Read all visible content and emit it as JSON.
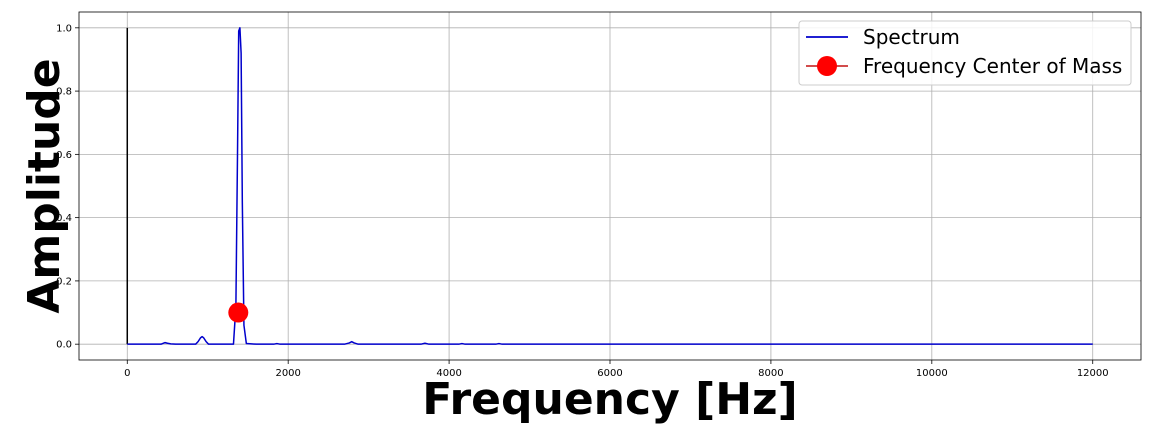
{
  "chart_data": {
    "type": "line",
    "title": "",
    "xlabel": "Frequency [Hz]",
    "ylabel": "Amplitude",
    "xlim": [
      -600,
      12600
    ],
    "ylim": [
      -0.05,
      1.05
    ],
    "xticks": [
      0,
      2000,
      4000,
      6000,
      8000,
      10000,
      12000
    ],
    "yticks": [
      0.0,
      0.2,
      0.4,
      0.6,
      0.8,
      1.0
    ],
    "xtick_labels": [
      "0",
      "2000",
      "4000",
      "6000",
      "8000",
      "10000",
      "12000"
    ],
    "ytick_labels": [
      "0.0",
      "0.2",
      "0.4",
      "0.6",
      "0.8",
      "1.0"
    ],
    "grid": true,
    "legend_position": "top-right",
    "colors": {
      "spectrum": "#0000cc",
      "marker": "#ff0000",
      "marker_line": "#cc3333",
      "vline": "#000000"
    },
    "series": [
      {
        "name": "Spectrum",
        "x": [
          0,
          420,
          450,
          470,
          500,
          540,
          600,
          850,
          880,
          910,
          930,
          950,
          980,
          1010,
          1100,
          1320,
          1350,
          1370,
          1385,
          1400,
          1415,
          1430,
          1450,
          1480,
          1600,
          1820,
          1860,
          1900,
          2700,
          2760,
          2790,
          2820,
          2870,
          3650,
          3700,
          3750,
          4120,
          4160,
          4200,
          4580,
          4620,
          4660,
          6000,
          8000,
          10000,
          12000
        ],
        "y": [
          0.0,
          0.0,
          0.003,
          0.005,
          0.003,
          0.001,
          0.0,
          0.0,
          0.008,
          0.02,
          0.024,
          0.02,
          0.008,
          0.0,
          0.0,
          0.0,
          0.12,
          0.6,
          0.99,
          1.0,
          0.92,
          0.45,
          0.06,
          0.002,
          0.0,
          0.0,
          0.002,
          0.0,
          0.0,
          0.004,
          0.008,
          0.004,
          0.0,
          0.0,
          0.003,
          0.0,
          0.0,
          0.002,
          0.0,
          0.0,
          0.002,
          0.0,
          0.0,
          0.0,
          0.0,
          0.0
        ]
      },
      {
        "name": "Frequency Center of Mass",
        "x": [
          1380
        ],
        "y": [
          0.1
        ]
      }
    ],
    "vline": {
      "x": 0,
      "y_from": 0.0,
      "y_to": 1.0
    }
  }
}
